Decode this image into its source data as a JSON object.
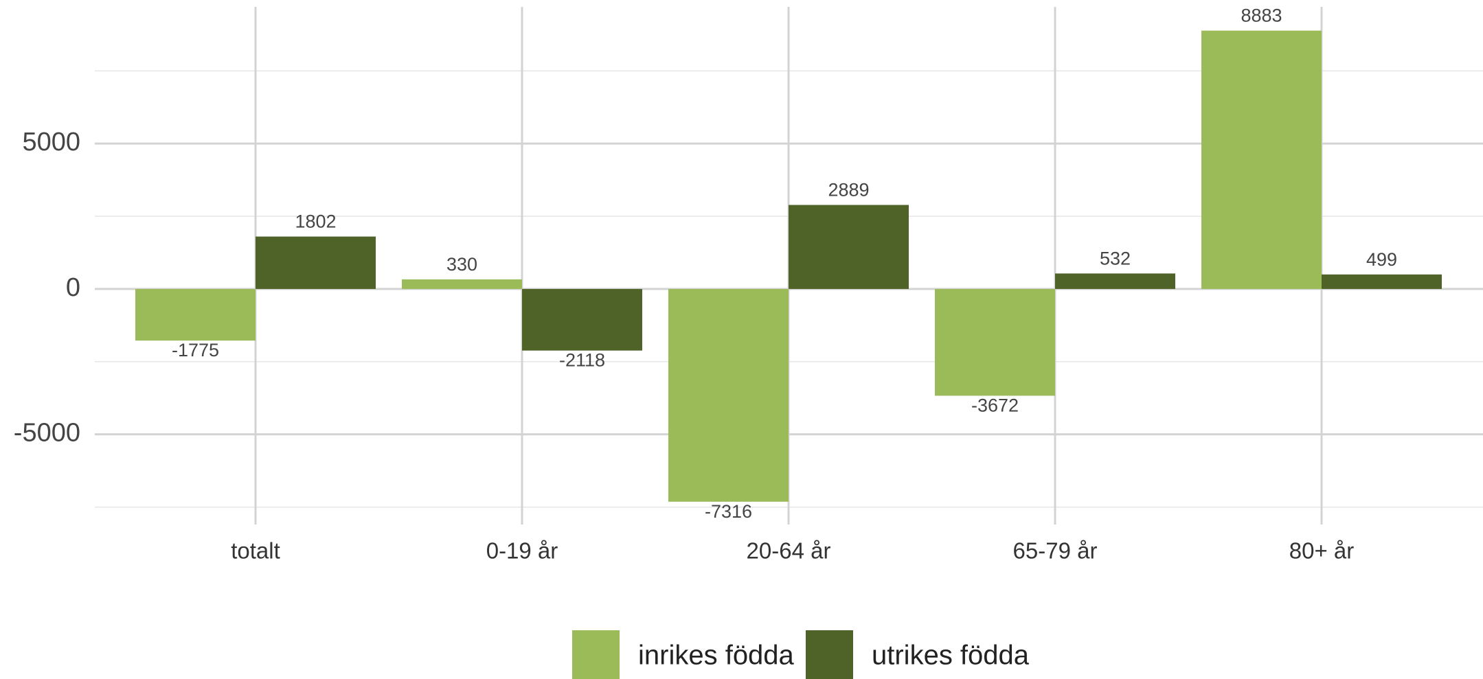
{
  "chart_data": {
    "type": "bar",
    "categories": [
      "totalt",
      "0-19 år",
      "20-64 år",
      "65-79 år",
      "80+ år"
    ],
    "series": [
      {
        "name": "inrikes födda",
        "color": "#9bbb59",
        "values": [
          -1775,
          330,
          -7316,
          -3672,
          8883
        ]
      },
      {
        "name": "utrikes födda",
        "color": "#4f6228",
        "values": [
          1802,
          -2118,
          2889,
          532,
          499
        ]
      }
    ],
    "ylim": [
      -8100,
      9700
    ],
    "yticks": [
      -5000,
      0,
      5000
    ],
    "y_minor_ticks": [
      -7500,
      -2500,
      2500,
      7500
    ],
    "grid": true,
    "legend": "bottom"
  }
}
